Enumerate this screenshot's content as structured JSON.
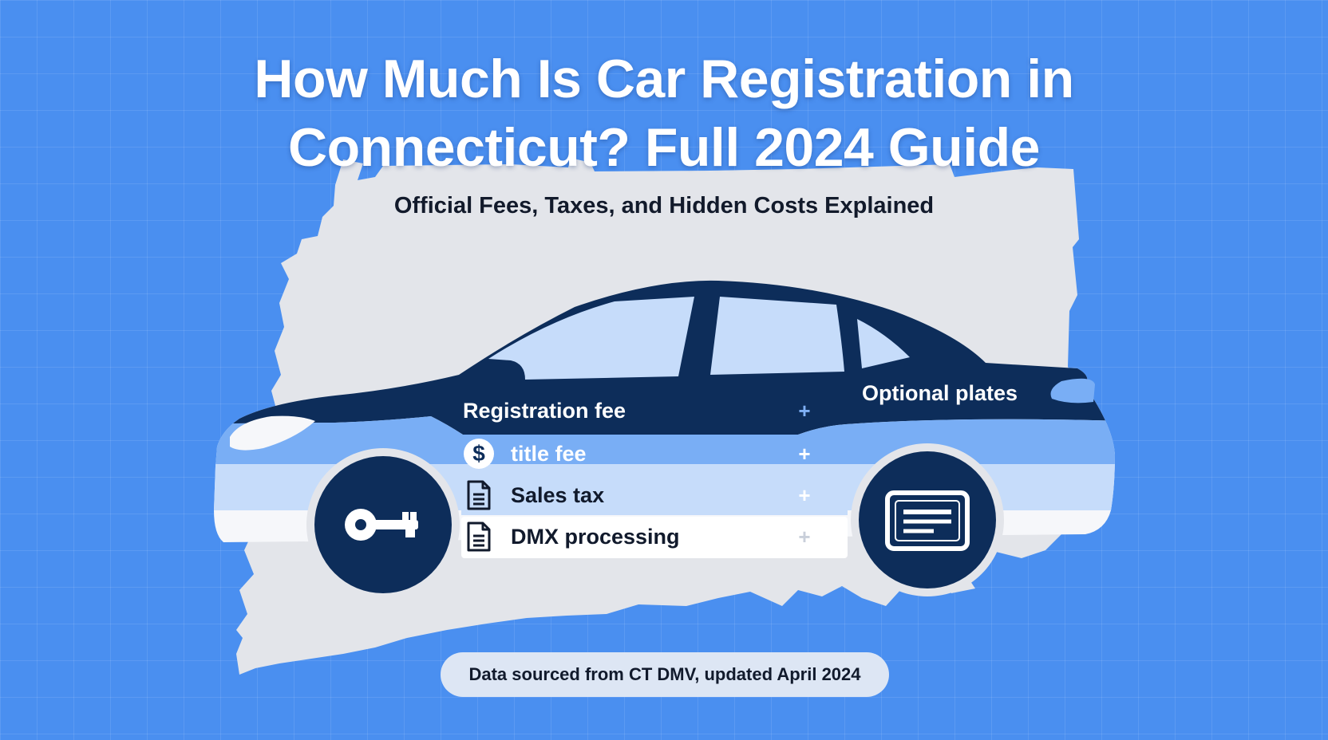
{
  "header": {
    "title_line1": "How Much Is Car Registration in",
    "title_line2": "Connecticut? Full 2024 Guide",
    "subtitle": "Official Fees, Taxes, and Hidden Costs Explained"
  },
  "fees": [
    {
      "label": "Registration fee",
      "icon": "none",
      "plus": "+"
    },
    {
      "label": "title fee",
      "icon": "dollar-icon",
      "plus": "+"
    },
    {
      "label": "Sales tax",
      "icon": "document-icon",
      "plus": "+"
    },
    {
      "label": "DMX processing",
      "icon": "document-icon",
      "plus": "+"
    }
  ],
  "optional_label": "Optional plates",
  "dollar_glyph": "$",
  "wheels": {
    "left_icon": "key-icon",
    "right_icon": "license-plate-icon"
  },
  "footer": {
    "note": "Data sourced from CT DMV, updated April 2024"
  },
  "colors": {
    "background": "#4a8ff0",
    "car_body_dark": "#0d2d5a",
    "car_stripe_mid": "#79aef5",
    "car_stripe_light": "#c6dcfa",
    "state_map": "#e3e5ea"
  }
}
